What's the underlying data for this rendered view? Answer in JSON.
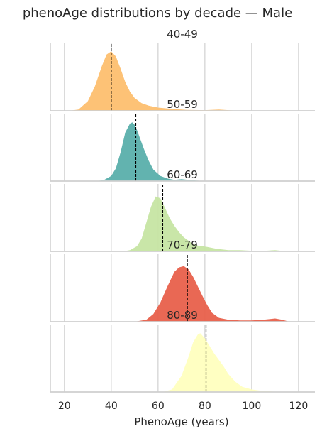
{
  "chart_data": {
    "type": "area",
    "title": "phenoAge distributions by decade — Male",
    "xlabel": "PhenoAge (years)",
    "ylabel": "",
    "xlim": [
      14,
      127
    ],
    "xticks": [
      "20",
      "40",
      "60",
      "80",
      "100",
      "120"
    ],
    "xtick_values": [
      20,
      40,
      60,
      80,
      100,
      120
    ],
    "grid": "vertical",
    "series": [
      {
        "name": "40-49",
        "color": "#fdbf6f",
        "median": 40,
        "x": [
          22,
          26,
          30,
          33,
          36,
          38,
          40,
          42,
          44,
          46,
          48,
          50,
          53,
          56,
          60,
          64,
          68,
          72,
          80,
          86,
          90,
          95
        ],
        "y": [
          0,
          0.02,
          0.15,
          0.38,
          0.7,
          0.88,
          0.93,
          0.85,
          0.66,
          0.45,
          0.3,
          0.2,
          0.12,
          0.08,
          0.05,
          0.035,
          0.025,
          0.015,
          0.01,
          0.02,
          0.01,
          0
        ]
      },
      {
        "name": "50-59",
        "color": "#5aafab",
        "median": 50.5,
        "x": [
          34,
          37,
          40,
          42,
          44,
          46,
          48,
          49,
          50,
          51,
          52,
          54,
          56,
          58,
          61,
          64,
          67,
          70,
          73,
          76,
          80
        ],
        "y": [
          0,
          0.02,
          0.08,
          0.2,
          0.45,
          0.76,
          0.9,
          0.92,
          0.88,
          0.8,
          0.7,
          0.5,
          0.32,
          0.18,
          0.08,
          0.04,
          0.02,
          0.03,
          0.02,
          0.01,
          0
        ]
      },
      {
        "name": "60-69",
        "color": "#c6e5a3",
        "median": 62,
        "x": [
          45,
          48,
          51,
          53,
          55,
          57,
          59,
          61,
          63,
          65,
          67,
          69,
          71,
          74,
          77,
          81,
          85,
          90,
          95,
          100,
          106,
          110,
          115
        ],
        "y": [
          0,
          0.02,
          0.08,
          0.2,
          0.45,
          0.7,
          0.86,
          0.83,
          0.68,
          0.52,
          0.4,
          0.3,
          0.22,
          0.14,
          0.09,
          0.07,
          0.04,
          0.02,
          0.02,
          0.01,
          0.01,
          0.02,
          0
        ]
      },
      {
        "name": "70-79",
        "color": "#e8604b",
        "median": 72.5,
        "x": [
          50,
          55,
          58,
          61,
          64,
          67,
          69,
          71,
          73,
          75,
          77,
          79,
          81,
          83,
          86,
          90,
          95,
          100,
          105,
          110,
          113,
          116
        ],
        "y": [
          0,
          0.03,
          0.12,
          0.3,
          0.55,
          0.78,
          0.85,
          0.87,
          0.82,
          0.7,
          0.55,
          0.4,
          0.26,
          0.14,
          0.06,
          0.03,
          0.02,
          0.02,
          0.03,
          0.05,
          0.03,
          0
        ]
      },
      {
        "name": "80-89",
        "color": "#ffffbf",
        "median": 80.5,
        "x": [
          62,
          66,
          70,
          73,
          75,
          77,
          78,
          80,
          82,
          84,
          86,
          88,
          90,
          93,
          96,
          100,
          104,
          108,
          112
        ],
        "y": [
          0,
          0.04,
          0.25,
          0.55,
          0.78,
          0.9,
          0.92,
          0.84,
          0.72,
          0.6,
          0.5,
          0.4,
          0.28,
          0.16,
          0.08,
          0.04,
          0.02,
          0.01,
          0
        ]
      }
    ]
  }
}
